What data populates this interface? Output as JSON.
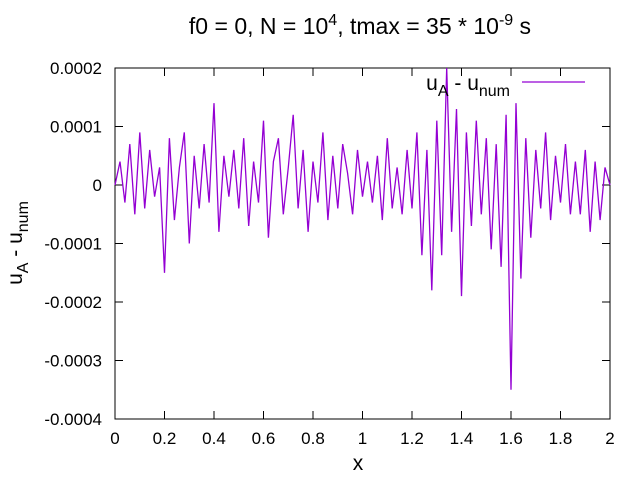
{
  "chart_data": {
    "type": "line",
    "title": {
      "prefix": "f0 = 0, N = 10",
      "n_exponent": "4",
      "middle": ", tmax = 35 * 10",
      "t_exponent": "-9",
      "suffix": " s"
    },
    "xlabel": "x",
    "ylabel": {
      "base1": "u",
      "sub1": "A",
      "mid": " - u",
      "sub2": "num"
    },
    "xlim": [
      0,
      2
    ],
    "ylim": [
      -0.0004,
      0.0002
    ],
    "x_ticks": [
      0,
      0.2,
      0.4,
      0.6,
      0.8,
      1,
      1.2,
      1.4,
      1.6,
      1.8,
      2
    ],
    "x_tick_labels": [
      "0",
      "0.2",
      "0.4",
      "0.6",
      "0.8",
      "1",
      "1.2",
      "1.4",
      "1.6",
      "1.8",
      "2"
    ],
    "y_ticks": [
      0.0002,
      0.0001,
      0,
      -0.0001,
      -0.0002,
      -0.0003,
      -0.0004
    ],
    "y_tick_labels": [
      "0.0002",
      "0.0001",
      "0",
      "-0.0001",
      "-0.0002",
      "-0.0003",
      "-0.0004"
    ],
    "legend": {
      "base1": "u",
      "sub1": "A",
      "mid": " - u",
      "sub2": "num",
      "placement": "top-right"
    },
    "grid": false,
    "series": [
      {
        "name": "uA - unum",
        "color": "#9400d3",
        "x": [
          0,
          0.02,
          0.04,
          0.06,
          0.08,
          0.1,
          0.12,
          0.14,
          0.16,
          0.18,
          0.2,
          0.22,
          0.24,
          0.26,
          0.28,
          0.3,
          0.32,
          0.34,
          0.36,
          0.38,
          0.4,
          0.42,
          0.44,
          0.46,
          0.48,
          0.5,
          0.52,
          0.54,
          0.56,
          0.58,
          0.6,
          0.62,
          0.64,
          0.66,
          0.68,
          0.7,
          0.72,
          0.74,
          0.76,
          0.78,
          0.8,
          0.82,
          0.84,
          0.86,
          0.88,
          0.9,
          0.92,
          0.94,
          0.96,
          0.98,
          1,
          1.02,
          1.04,
          1.06,
          1.08,
          1.1,
          1.12,
          1.14,
          1.16,
          1.18,
          1.2,
          1.22,
          1.24,
          1.26,
          1.28,
          1.3,
          1.32,
          1.34,
          1.36,
          1.38,
          1.4,
          1.42,
          1.44,
          1.46,
          1.48,
          1.5,
          1.52,
          1.54,
          1.56,
          1.58,
          1.6,
          1.62,
          1.64,
          1.66,
          1.68,
          1.7,
          1.72,
          1.74,
          1.76,
          1.78,
          1.8,
          1.82,
          1.84,
          1.86,
          1.88,
          1.9,
          1.92,
          1.94,
          1.96,
          1.98,
          2
        ],
        "y": [
          0.0,
          4e-05,
          -3e-05,
          7e-05,
          -5e-05,
          9e-05,
          -4e-05,
          6e-05,
          -2e-05,
          3e-05,
          -0.00015,
          8e-05,
          -6e-05,
          3e-05,
          9e-05,
          -0.0001,
          5e-05,
          -4e-05,
          7e-05,
          -3e-05,
          0.00014,
          -8e-05,
          5e-05,
          -2e-05,
          6e-05,
          -4e-05,
          8e-05,
          -7e-05,
          4e-05,
          -3e-05,
          0.00011,
          -9e-05,
          4e-05,
          8e-05,
          -5e-05,
          3e-05,
          0.00012,
          -4e-05,
          6e-05,
          -8e-05,
          4e-05,
          -3e-05,
          9e-05,
          -6e-05,
          5e-05,
          -4e-05,
          7e-05,
          2e-05,
          -5e-05,
          6e-05,
          -2e-05,
          4e-05,
          -3e-05,
          5e-05,
          -6e-05,
          8e-05,
          -4e-05,
          3e-05,
          -5e-05,
          6e-05,
          -4e-05,
          9e-05,
          -0.00012,
          6e-05,
          -0.00018,
          0.00011,
          -0.00012,
          0.00027,
          -8e-05,
          0.00013,
          -0.00019,
          9e-05,
          -7e-05,
          0.00011,
          -5e-05,
          8e-05,
          -0.00011,
          7e-05,
          -0.00014,
          0.00012,
          -0.00035,
          0.00014,
          -0.00016,
          8e-05,
          -9e-05,
          6e-05,
          -4e-05,
          9e-05,
          -6e-05,
          5e-05,
          -3e-05,
          7e-05,
          -5e-05,
          4e-05,
          -5e-05,
          6e-05,
          -8e-05,
          4e-05,
          -6e-05,
          3e-05,
          0.0
        ]
      }
    ]
  }
}
